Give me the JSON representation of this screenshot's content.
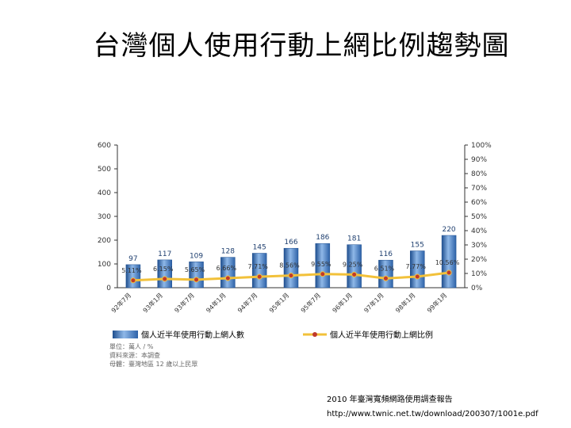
{
  "slide": {
    "title": "台灣個人使用行動上網比例趨勢圖",
    "caption": "2010 年臺灣寬頻網路使用調查報告",
    "url": "http://www.twnic.net.tw/download/200307/1001e.pdf"
  },
  "notes": {
    "unit": "單位：萬人 / %",
    "source": "資料來源：本調查",
    "scope": "母體：臺灣地區 12 歲以上民眾"
  },
  "chart_data": {
    "type": "bar",
    "categories": [
      "92年7月",
      "93年1月",
      "93年7月",
      "94年1月",
      "94年7月",
      "95年1月",
      "95年7月",
      "96年1月",
      "97年1月",
      "98年1月",
      "99年1月"
    ],
    "series": [
      {
        "name": "個人近半年使用行動上網人數",
        "type": "bar",
        "axis": "left",
        "values": [
          97,
          117,
          109,
          128,
          145,
          166,
          186,
          181,
          116,
          155,
          220
        ],
        "labels": [
          "97",
          "117",
          "109",
          "128",
          "145",
          "166",
          "186",
          "181",
          "116",
          "155",
          "220"
        ]
      },
      {
        "name": "個人近半年使用行動上網比例",
        "type": "line",
        "axis": "right",
        "values": [
          5.11,
          6.15,
          5.65,
          6.66,
          7.71,
          8.56,
          9.55,
          9.25,
          6.51,
          7.77,
          10.56
        ],
        "labels": [
          "5.11%",
          "6.15%",
          "5.65%",
          "6.66%",
          "7.71%",
          "8.56%",
          "9.55%",
          "9.25%",
          "6.51%",
          "7.77%",
          "10.56%"
        ]
      }
    ],
    "y_left": {
      "ticks": [
        "0",
        "100",
        "200",
        "300",
        "400",
        "500",
        "600"
      ],
      "range": [
        0,
        600
      ]
    },
    "y_right": {
      "ticks": [
        "0%",
        "10%",
        "20%",
        "30%",
        "40%",
        "50%",
        "60%",
        "70%",
        "80%",
        "90%",
        "100%"
      ],
      "range": [
        0,
        100
      ]
    },
    "colors": {
      "bar": "#4a7fc1",
      "bar_dark": "#1f4f8f",
      "line": "#f2c13a",
      "marker": "#c0392b"
    },
    "legend_position": "bottom",
    "grid": false
  }
}
